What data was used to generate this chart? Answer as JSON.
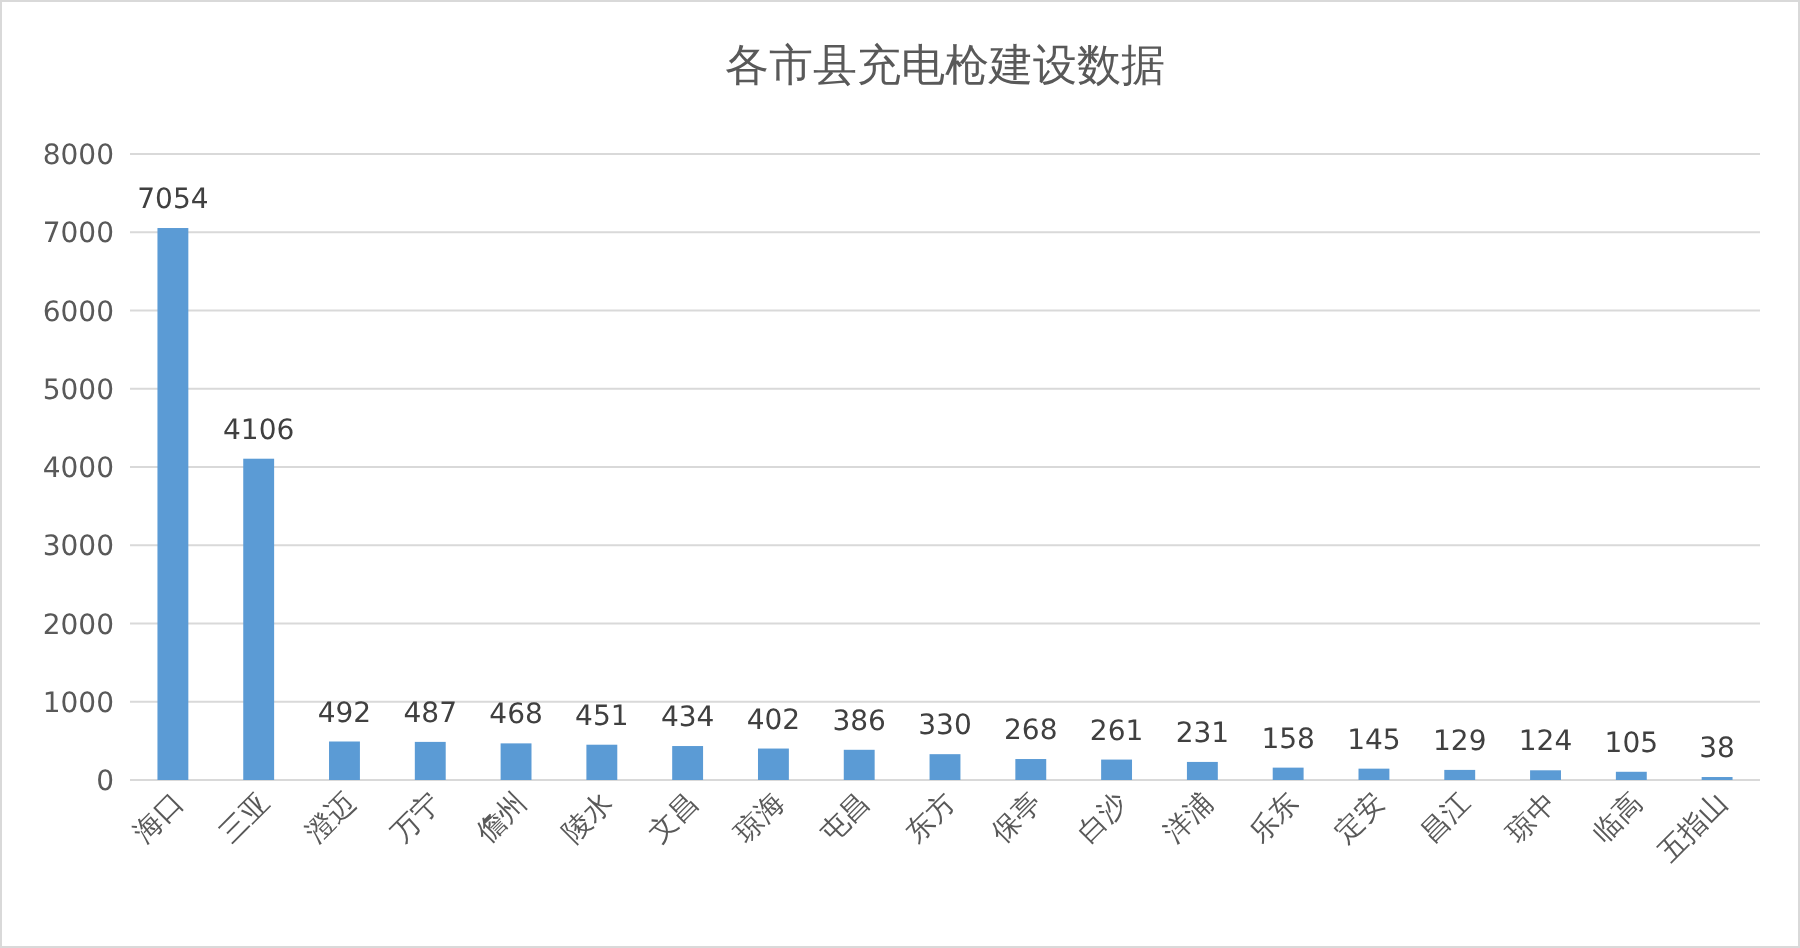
{
  "chart_data": {
    "type": "bar",
    "title": "各市县充电枪建设数据",
    "categories": [
      "海口",
      "三亚",
      "澄迈",
      "万宁",
      "儋州",
      "陵水",
      "文昌",
      "琼海",
      "屯昌",
      "东方",
      "保亭",
      "白沙",
      "洋浦",
      "乐东",
      "定安",
      "昌江",
      "琼中",
      "临高",
      "五指山"
    ],
    "values": [
      7054,
      4106,
      492,
      487,
      468,
      451,
      434,
      402,
      386,
      330,
      268,
      261,
      231,
      158,
      145,
      129,
      124,
      105,
      38
    ],
    "color": "#5b9bd5",
    "ylim": [
      0,
      8000
    ],
    "yticks": [
      0,
      1000,
      2000,
      3000,
      4000,
      5000,
      6000,
      7000,
      8000
    ],
    "grid": "y",
    "data_labels": true
  }
}
